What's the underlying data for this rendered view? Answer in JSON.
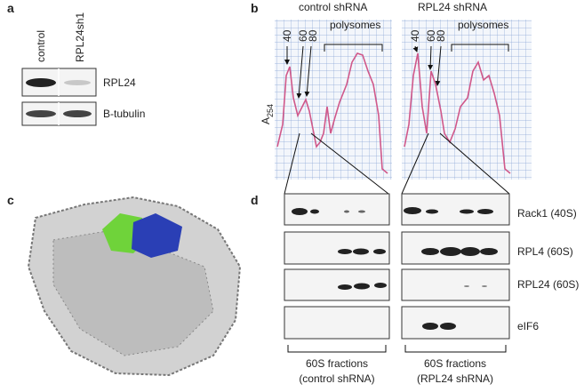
{
  "panel_a": {
    "label": "a",
    "lanes": [
      "control",
      "RPL24sh1"
    ],
    "rows": [
      "RPL24",
      "B-tubulin"
    ]
  },
  "panel_b": {
    "label": "b",
    "y_axis": {
      "main": "A",
      "sub": "254"
    },
    "profiles": [
      {
        "title": "control shRNA",
        "peaks": [
          "40",
          "60",
          "80"
        ],
        "region": "polysomes"
      },
      {
        "title": "RPL24  shRNA",
        "peaks": [
          "40",
          "60",
          "80"
        ],
        "region": "polysomes"
      }
    ]
  },
  "panel_c": {
    "label": "c"
  },
  "panel_d": {
    "label": "d",
    "rows": [
      "Rack1 (40S)",
      "RPL4 (60S)",
      "RPL24 (60S)",
      "eIF6"
    ],
    "groups": [
      {
        "lines": [
          "60S fractions",
          "(control shRNA)"
        ]
      },
      {
        "lines": [
          "60S fractions",
          "(RPL24  shRNA)"
        ]
      }
    ]
  }
}
